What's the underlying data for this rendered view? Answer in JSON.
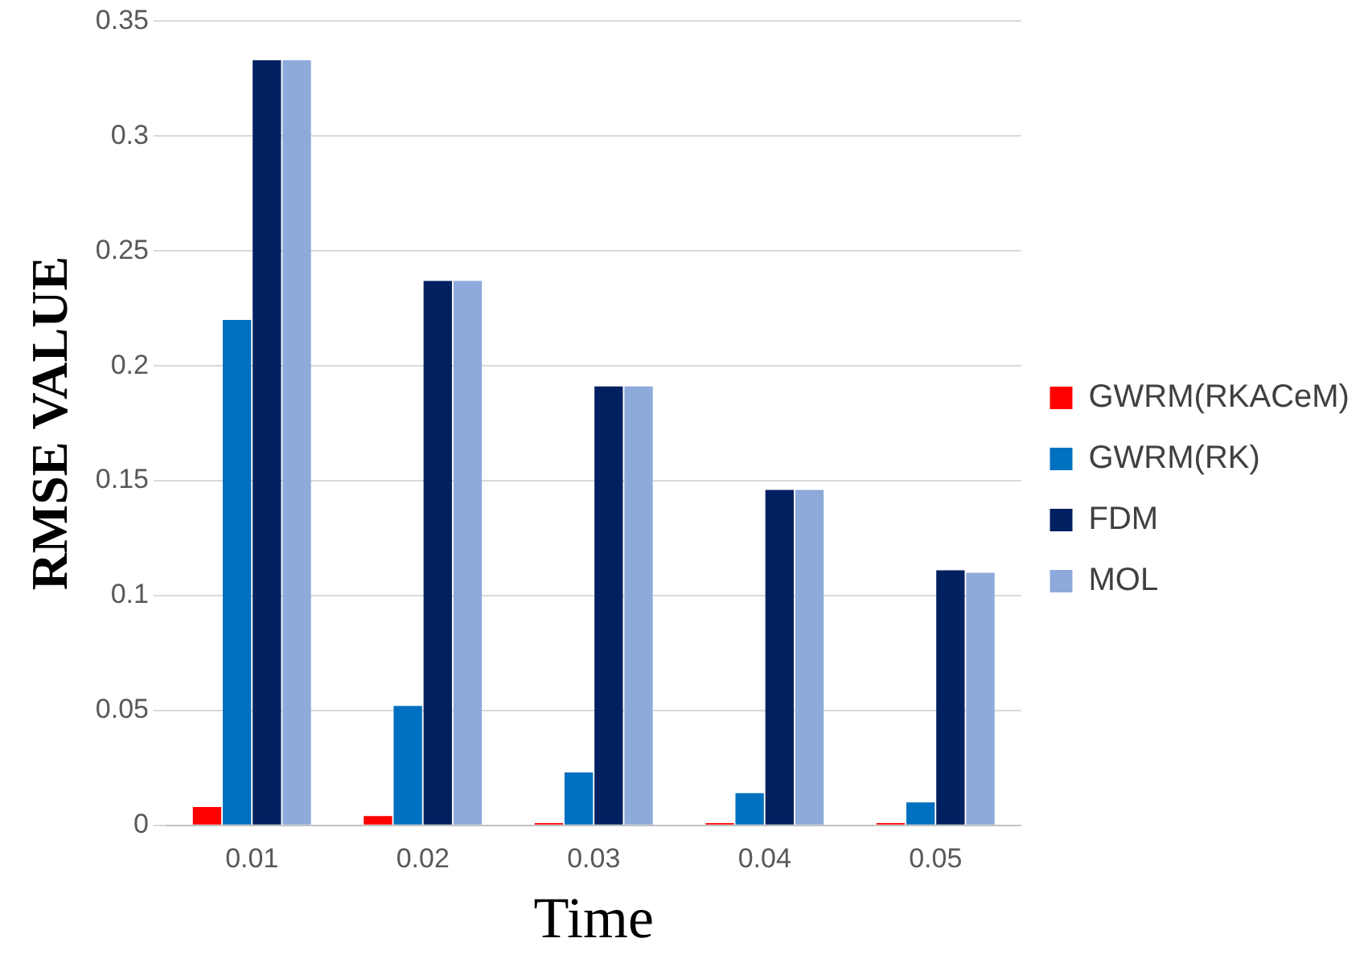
{
  "chart_data": {
    "type": "bar",
    "xlabel": "Time",
    "ylabel": "RMSE VALUE",
    "categories": [
      "0.01",
      "0.02",
      "0.03",
      "0.04",
      "0.05"
    ],
    "series": [
      {
        "name": "GWRM(RKACeM)",
        "color": "#ff0000",
        "values": [
          0.008,
          0.004,
          0.001,
          0.001,
          0.001
        ]
      },
      {
        "name": "GWRM(RK)",
        "color": "#0070c0",
        "values": [
          0.22,
          0.052,
          0.023,
          0.014,
          0.01
        ]
      },
      {
        "name": "FDM",
        "color": "#002060",
        "values": [
          0.333,
          0.237,
          0.191,
          0.146,
          0.111
        ]
      },
      {
        "name": "MOL",
        "color": "#8eaadb",
        "values": [
          0.333,
          0.237,
          0.191,
          0.146,
          0.11
        ]
      }
    ],
    "ylim": [
      0,
      0.35
    ],
    "yticks": [
      0,
      0.05,
      0.1,
      0.15,
      0.2,
      0.25,
      0.3,
      0.35
    ],
    "grid": "y",
    "legend": "right"
  }
}
